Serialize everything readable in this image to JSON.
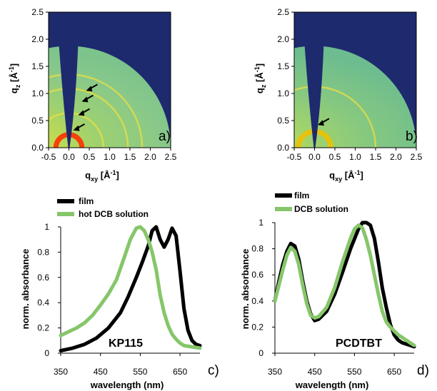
{
  "colors": {
    "film": "#000000",
    "solution": "#86c66a",
    "gi_background": "#1e2a6e",
    "gi_high": "#f5e000"
  },
  "chart_data": [
    {
      "panel": "a)",
      "type": "heatmap",
      "xlabel": "q",
      "xlabel_sub": "xy",
      "xlabel_unit": " [Å",
      "xlabel_sup": "-1",
      "xlabel_end": "]",
      "ylabel": "q",
      "ylabel_sub": "z",
      "ylabel_unit": " [Å",
      "ylabel_sup": "-1",
      "ylabel_end": "]",
      "xlim": [
        -0.5,
        2.5
      ],
      "ylim": [
        0.0,
        2.5
      ],
      "xticks": [
        "-0.5",
        "0.0",
        "0.5",
        "1.0",
        "1.5",
        "2.0",
        "2.5"
      ],
      "yticks": [
        "0.0",
        "0.5",
        "1.0",
        "1.5",
        "2.0",
        "2.5"
      ],
      "rings_q": [
        0.32,
        1.45,
        1.8,
        0.85
      ],
      "arrows": [
        {
          "q": 0.3,
          "r": 0.32
        },
        {
          "q": 0.65,
          "r": 0.6
        },
        {
          "q": 0.9,
          "r": 0.85
        },
        {
          "q": 1.2,
          "r": 1.05
        }
      ]
    },
    {
      "panel": "b)",
      "type": "heatmap",
      "xlabel": "q",
      "xlabel_sub": "xy",
      "xlabel_unit": " [Å",
      "xlabel_sup": "-1",
      "xlabel_end": "]",
      "ylabel": "q",
      "ylabel_sub": "z",
      "ylabel_unit": " [Å",
      "ylabel_sup": "-1",
      "ylabel_end": "]",
      "xlim": [
        -0.5,
        2.5
      ],
      "ylim": [
        0.0,
        2.5
      ],
      "xticks": [
        "-0.5",
        "0.0",
        "0.5",
        "1.0",
        "1.5",
        "2.0",
        "2.5"
      ],
      "yticks": [
        "0.0",
        "0.5",
        "1.0",
        "1.5",
        "2.0",
        "2.5"
      ],
      "rings_q": [
        0.4,
        1.5
      ],
      "arrows": [
        {
          "q": 0.22,
          "r": 0.42
        }
      ]
    },
    {
      "panel": "c)",
      "type": "line",
      "label": "KP115",
      "xlabel": "wavelength (nm)",
      "ylabel": "norm. absorbance",
      "xlim": [
        350,
        700
      ],
      "ylim": [
        0,
        1
      ],
      "xticks": [
        350,
        450,
        550,
        650
      ],
      "yticks": [
        "0",
        "0.2",
        "0.4",
        "0.6",
        "0.8",
        "1"
      ],
      "series": [
        {
          "name": "film",
          "x": [
            350,
            380,
            410,
            440,
            470,
            500,
            520,
            540,
            555,
            570,
            580,
            590,
            600,
            610,
            620,
            630,
            640,
            650,
            660,
            670,
            680,
            690,
            700
          ],
          "y": [
            0.02,
            0.04,
            0.07,
            0.12,
            0.2,
            0.32,
            0.45,
            0.6,
            0.72,
            0.85,
            0.97,
            1.0,
            0.9,
            0.84,
            0.9,
            0.99,
            0.93,
            0.65,
            0.35,
            0.18,
            0.1,
            0.07,
            0.06
          ]
        },
        {
          "name": "hot DCB solution",
          "x": [
            350,
            370,
            390,
            410,
            430,
            450,
            470,
            490,
            510,
            525,
            540,
            550,
            560,
            570,
            580,
            590,
            600,
            610,
            620,
            630,
            640,
            650,
            660,
            680,
            700
          ],
          "y": [
            0.14,
            0.17,
            0.2,
            0.24,
            0.3,
            0.38,
            0.47,
            0.58,
            0.76,
            0.9,
            0.99,
            1.0,
            0.97,
            0.9,
            0.8,
            0.66,
            0.46,
            0.32,
            0.22,
            0.15,
            0.11,
            0.08,
            0.06,
            0.05,
            0.04
          ]
        }
      ]
    },
    {
      "panel": "d)",
      "type": "line",
      "label": "PCDTBT",
      "xlabel": "wavelength (nm)",
      "ylabel": "norm. absorbance",
      "xlim": [
        350,
        700
      ],
      "ylim": [
        0,
        1
      ],
      "xticks": [
        350,
        450,
        550,
        650
      ],
      "yticks": [
        "0",
        "0.2",
        "0.4",
        "0.6",
        "0.8",
        "1"
      ],
      "series": [
        {
          "name": "film",
          "x": [
            350,
            360,
            370,
            380,
            390,
            400,
            410,
            420,
            430,
            440,
            450,
            460,
            480,
            500,
            520,
            540,
            560,
            570,
            580,
            590,
            600,
            610,
            620,
            630,
            640,
            650,
            660,
            670,
            680,
            690,
            700
          ],
          "y": [
            0.4,
            0.55,
            0.68,
            0.78,
            0.84,
            0.82,
            0.72,
            0.55,
            0.4,
            0.3,
            0.25,
            0.26,
            0.32,
            0.45,
            0.62,
            0.8,
            0.95,
            1.0,
            1.0,
            0.98,
            0.88,
            0.7,
            0.5,
            0.35,
            0.22,
            0.14,
            0.1,
            0.08,
            0.07,
            0.06,
            0.05
          ]
        },
        {
          "name": "DCB solution",
          "x": [
            350,
            360,
            370,
            380,
            390,
            400,
            410,
            420,
            430,
            440,
            450,
            460,
            480,
            500,
            520,
            540,
            550,
            560,
            570,
            580,
            590,
            600,
            610,
            620,
            630,
            640,
            650,
            660,
            670,
            680,
            690,
            700
          ],
          "y": [
            0.4,
            0.52,
            0.64,
            0.75,
            0.81,
            0.78,
            0.68,
            0.52,
            0.38,
            0.29,
            0.27,
            0.28,
            0.35,
            0.5,
            0.7,
            0.88,
            0.95,
            0.98,
            0.96,
            0.87,
            0.75,
            0.6,
            0.45,
            0.32,
            0.24,
            0.2,
            0.17,
            0.14,
            0.12,
            0.1,
            0.08,
            0.06
          ]
        }
      ]
    }
  ]
}
